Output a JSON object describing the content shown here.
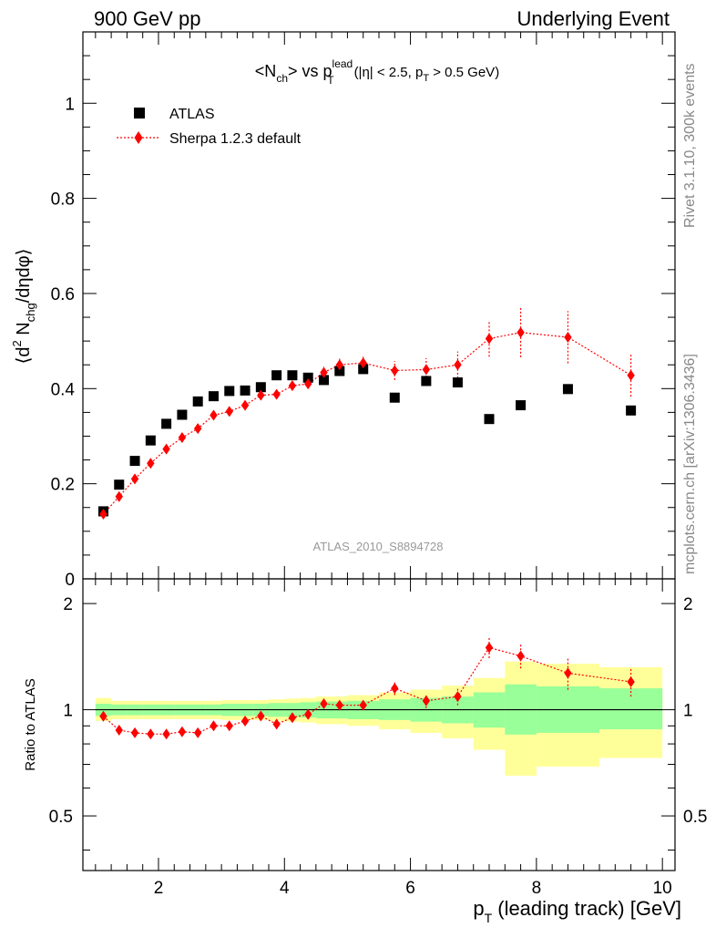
{
  "header": {
    "left": "900 GeV pp",
    "right": "Underlying Event"
  },
  "side_labels": {
    "rivet": "Rivet 3.1.10,  300k events",
    "mcplots": "mcplots.cern.ch [arXiv:1306.3436]"
  },
  "chart_data": [
    {
      "type": "scatter",
      "title_parts": {
        "a": "<N",
        "a_sub": "ch",
        "b": "> vs p",
        "b_sup": "lead",
        "b_sub": "T",
        "c": "(|η| < 2.5, p",
        "c_sub": "T",
        "d": " > 0.5 GeV)"
      },
      "ylabel_parts": {
        "a": "⟨d",
        "a_sup": "2",
        "b": " N",
        "b_sub": "chg",
        "c": "/dηdφ⟩"
      },
      "watermark": "ATLAS_2010_S8894728",
      "xlim": [
        0.8,
        10.2
      ],
      "ylim": [
        0,
        1.15
      ],
      "ytick_labels": [
        "0",
        "0.2",
        "0.4",
        "0.6",
        "0.8",
        "1"
      ],
      "yticks": [
        0,
        0.2,
        0.4,
        0.6,
        0.8,
        1.0
      ],
      "legend_placement": "top-left",
      "series": [
        {
          "name": "ATLAS",
          "color": "#000000",
          "marker": "square",
          "x": [
            1.125,
            1.375,
            1.625,
            1.875,
            2.125,
            2.375,
            2.625,
            2.875,
            3.125,
            3.375,
            3.625,
            3.875,
            4.125,
            4.375,
            4.625,
            4.875,
            5.25,
            5.75,
            6.25,
            6.75,
            7.25,
            7.75,
            8.5,
            9.5
          ],
          "y": [
            0.142,
            0.198,
            0.248,
            0.291,
            0.326,
            0.345,
            0.373,
            0.384,
            0.395,
            0.396,
            0.403,
            0.428,
            0.428,
            0.423,
            0.418,
            0.437,
            0.441,
            0.381,
            0.416,
            0.413,
            0.336,
            0.365,
            0.399,
            0.354
          ]
        },
        {
          "name": "Sherpa 1.2.3 default",
          "color": "#ff0000",
          "marker": "diamond",
          "x": [
            1.125,
            1.375,
            1.625,
            1.875,
            2.125,
            2.375,
            2.625,
            2.875,
            3.125,
            3.375,
            3.625,
            3.875,
            4.125,
            4.375,
            4.625,
            4.875,
            5.25,
            5.75,
            6.25,
            6.75,
            7.25,
            7.75,
            8.5,
            9.5
          ],
          "y": [
            0.136,
            0.173,
            0.21,
            0.243,
            0.273,
            0.297,
            0.316,
            0.344,
            0.352,
            0.365,
            0.386,
            0.388,
            0.406,
            0.41,
            0.434,
            0.45,
            0.454,
            0.438,
            0.44,
            0.45,
            0.505,
            0.518,
            0.508,
            0.428
          ],
          "yerr": [
            0.005,
            0.005,
            0.005,
            0.005,
            0.005,
            0.005,
            0.006,
            0.006,
            0.006,
            0.007,
            0.007,
            0.008,
            0.009,
            0.01,
            0.012,
            0.014,
            0.013,
            0.02,
            0.024,
            0.028,
            0.038,
            0.052,
            0.055,
            0.045
          ]
        }
      ]
    },
    {
      "type": "scatter",
      "ylabel": "Ratio to ATLAS",
      "xlabel_parts": {
        "a": "p",
        "a_sub": "T",
        "b": " (leading track) [GeV]"
      },
      "xlim": [
        0.8,
        10.2
      ],
      "ylim": [
        0.35,
        2.35
      ],
      "xtick_labels": [
        "2",
        "4",
        "6",
        "8",
        "10"
      ],
      "xticks": [
        2,
        4,
        6,
        8,
        10
      ],
      "ytick_labels": [
        "0.5",
        "1",
        "2"
      ],
      "yticks": [
        0.5,
        1,
        2
      ],
      "reference_line": 1,
      "bands": {
        "colors": {
          "green": "#99ff99",
          "yellow": "#ffff99"
        },
        "bins": [
          [
            1.0,
            1.25
          ],
          [
            1.25,
            1.5
          ],
          [
            1.5,
            1.75
          ],
          [
            1.75,
            2.0
          ],
          [
            2.0,
            2.25
          ],
          [
            2.25,
            2.5
          ],
          [
            2.5,
            2.75
          ],
          [
            2.75,
            3.0
          ],
          [
            3.0,
            3.25
          ],
          [
            3.25,
            3.5
          ],
          [
            3.5,
            3.75
          ],
          [
            3.75,
            4.0
          ],
          [
            4.0,
            4.25
          ],
          [
            4.25,
            4.5
          ],
          [
            4.5,
            5.0
          ],
          [
            5.0,
            5.5
          ],
          [
            5.5,
            6.0
          ],
          [
            6.0,
            6.5
          ],
          [
            6.5,
            7.0
          ],
          [
            7.0,
            7.5
          ],
          [
            7.5,
            8.0
          ],
          [
            8.0,
            9.0
          ],
          [
            9.0,
            10.0
          ]
        ],
        "green_lo": [
          0.96,
          0.965,
          0.965,
          0.965,
          0.965,
          0.965,
          0.965,
          0.965,
          0.96,
          0.96,
          0.96,
          0.955,
          0.955,
          0.95,
          0.945,
          0.94,
          0.935,
          0.925,
          0.915,
          0.89,
          0.85,
          0.86,
          0.88
        ],
        "green_hi": [
          1.04,
          1.035,
          1.035,
          1.035,
          1.035,
          1.035,
          1.035,
          1.035,
          1.04,
          1.04,
          1.04,
          1.045,
          1.045,
          1.05,
          1.055,
          1.06,
          1.07,
          1.08,
          1.09,
          1.12,
          1.18,
          1.165,
          1.15
        ],
        "yellow_lo": [
          0.93,
          0.94,
          0.94,
          0.94,
          0.94,
          0.94,
          0.94,
          0.94,
          0.935,
          0.935,
          0.935,
          0.93,
          0.925,
          0.92,
          0.91,
          0.9,
          0.88,
          0.86,
          0.83,
          0.77,
          0.65,
          0.69,
          0.73
        ],
        "yellow_hi": [
          1.08,
          1.06,
          1.06,
          1.06,
          1.06,
          1.06,
          1.06,
          1.06,
          1.065,
          1.065,
          1.065,
          1.07,
          1.075,
          1.08,
          1.09,
          1.1,
          1.12,
          1.14,
          1.17,
          1.23,
          1.37,
          1.35,
          1.32
        ]
      },
      "series": [
        {
          "name": "Sherpa 1.2.3 default",
          "color": "#ff0000",
          "marker": "diamond",
          "x": [
            1.125,
            1.375,
            1.625,
            1.875,
            2.125,
            2.375,
            2.625,
            2.875,
            3.125,
            3.375,
            3.625,
            3.875,
            4.125,
            4.375,
            4.625,
            4.875,
            5.25,
            5.75,
            6.25,
            6.75,
            7.25,
            7.75,
            8.5,
            9.5
          ],
          "y": [
            0.958,
            0.875,
            0.86,
            0.853,
            0.853,
            0.866,
            0.86,
            0.9,
            0.9,
            0.929,
            0.96,
            0.91,
            0.95,
            0.97,
            1.04,
            1.03,
            1.03,
            1.15,
            1.06,
            1.09,
            1.5,
            1.42,
            1.27,
            1.2
          ],
          "yerr": [
            0.01,
            0.01,
            0.01,
            0.01,
            0.01,
            0.01,
            0.01,
            0.01,
            0.01,
            0.01,
            0.01,
            0.015,
            0.015,
            0.02,
            0.02,
            0.03,
            0.03,
            0.05,
            0.05,
            0.06,
            0.1,
            0.11,
            0.13,
            0.11
          ]
        }
      ]
    }
  ]
}
